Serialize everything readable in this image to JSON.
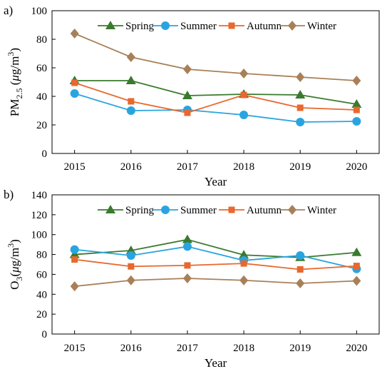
{
  "chart_data": [
    {
      "type": "line",
      "panel_label": "a)",
      "ylabel": {
        "base": "PM",
        "sub": "2.5",
        "unit_open": " (",
        "unit_mu": "μ",
        "unit_g": "g/m",
        "unit_sup": "3",
        "unit_close": ")"
      },
      "xlabel": "Year",
      "x": [
        2015,
        2016,
        2017,
        2018,
        2019,
        2020
      ],
      "ylim": [
        0,
        100
      ],
      "yticks": [
        0,
        20,
        40,
        60,
        80,
        100
      ],
      "grid": false,
      "legend_position": "top",
      "series": [
        {
          "name": "Spring",
          "marker": "triangle",
          "color": "#3a7a2e",
          "values": [
            51,
            51,
            40.5,
            41.5,
            41,
            34.5
          ]
        },
        {
          "name": "Summer",
          "marker": "circle",
          "color": "#2aa4e0",
          "values": [
            42,
            30,
            30.5,
            27,
            22,
            22.5
          ]
        },
        {
          "name": "Autumn",
          "marker": "square",
          "color": "#e8682e",
          "values": [
            49.5,
            36.5,
            28.5,
            41,
            32,
            30.5
          ]
        },
        {
          "name": "Winter",
          "marker": "diamond",
          "color": "#a88058",
          "values": [
            84,
            67.5,
            59,
            56,
            53.5,
            51
          ]
        }
      ]
    },
    {
      "type": "line",
      "panel_label": "b)",
      "ylabel": {
        "base": "O",
        "sub": "3",
        "unit_open": "(",
        "unit_mu": "μ",
        "unit_g": "g/m",
        "unit_sup": "3",
        "unit_close": ")"
      },
      "xlabel": "Year",
      "x": [
        2015,
        2016,
        2017,
        2018,
        2019,
        2020
      ],
      "ylim": [
        0,
        140
      ],
      "yticks": [
        0,
        20,
        40,
        60,
        80,
        100,
        120,
        140
      ],
      "grid": false,
      "legend_position": "top",
      "series": [
        {
          "name": "Spring",
          "marker": "triangle",
          "color": "#3a7a2e",
          "values": [
            80,
            84,
            95,
            79.5,
            77,
            82
          ]
        },
        {
          "name": "Summer",
          "marker": "circle",
          "color": "#2aa4e0",
          "values": [
            85,
            79,
            88,
            74,
            79,
            65.5
          ]
        },
        {
          "name": "Autumn",
          "marker": "square",
          "color": "#e8682e",
          "values": [
            75,
            68,
            69,
            71,
            65,
            68.5
          ]
        },
        {
          "name": "Winter",
          "marker": "diamond",
          "color": "#a88058",
          "values": [
            48,
            54,
            56,
            54,
            51,
            53.5
          ]
        }
      ]
    }
  ]
}
